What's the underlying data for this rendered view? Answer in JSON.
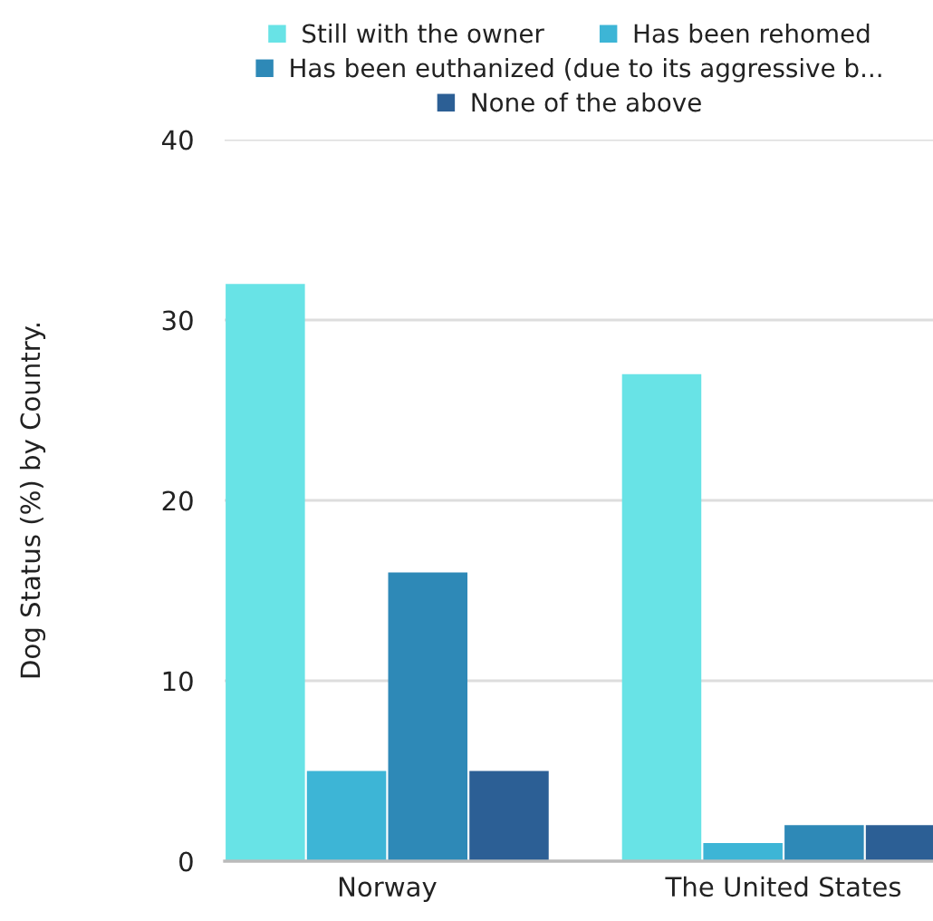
{
  "chart_data": {
    "type": "bar",
    "ylabel": "Dog Status (%) by Country.",
    "categories": [
      "Norway",
      "The United States"
    ],
    "series": [
      {
        "name": "Still with the owner",
        "color": "#68e3e6",
        "values": [
          32,
          27
        ]
      },
      {
        "name": "Has been rehomed",
        "color": "#3db5d6",
        "values": [
          5,
          1
        ]
      },
      {
        "name": "Has been euthanized (due to its aggressive b...",
        "color": "#2e89b7",
        "values": [
          16,
          2
        ]
      },
      {
        "name": "None of the above",
        "color": "#2c5f95",
        "values": [
          5,
          2
        ]
      }
    ],
    "ylim": [
      0,
      40
    ],
    "yticks": [
      0,
      10,
      20,
      30,
      40
    ],
    "grid": "y",
    "legend": "top"
  }
}
